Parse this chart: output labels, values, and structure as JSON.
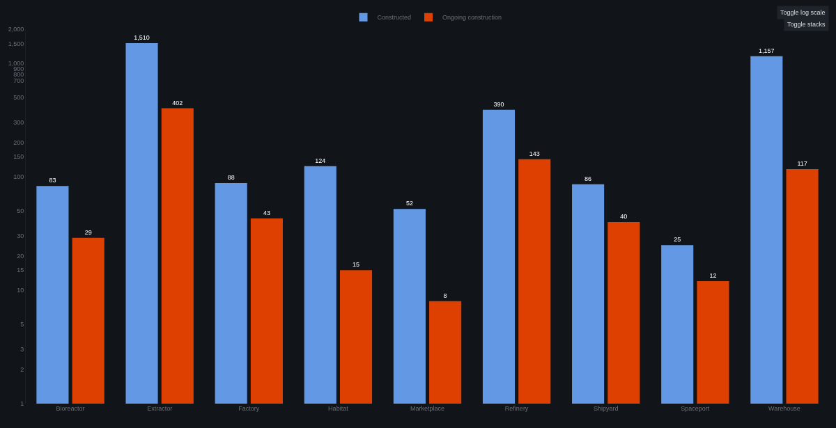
{
  "chart_data": {
    "type": "bar",
    "log": "y",
    "grid": false,
    "legend": "top",
    "categories": [
      "Bioreactor",
      "Extractor",
      "Factory",
      "Habitat",
      "Marketplace",
      "Refinery",
      "Shipyard",
      "Spaceport",
      "Warehouse"
    ],
    "series": [
      {
        "name": "Constructed",
        "color": "#6399e4",
        "values": [
          83,
          1510,
          88,
          124,
          52,
          390,
          86,
          25,
          1157
        ],
        "value_labels": [
          "83",
          "1,510",
          "88",
          "124",
          "52",
          "390",
          "86",
          "25",
          "1,157"
        ]
      },
      {
        "name": "Ongoing construction",
        "color": "#dd4000",
        "values": [
          29,
          402,
          43,
          15,
          8,
          143,
          40,
          12,
          117
        ],
        "value_labels": [
          "29",
          "402",
          "43",
          "15",
          "8",
          "143",
          "40",
          "12",
          "117"
        ]
      }
    ],
    "ylim": [
      1,
      2000
    ],
    "yticks": [
      1,
      2,
      3,
      5,
      10,
      15,
      20,
      30,
      50,
      100,
      150,
      200,
      300,
      500,
      700,
      800,
      900,
      {
        "value": 1000,
        "label": "1,000"
      },
      {
        "value": 1500,
        "label": "1,500"
      },
      {
        "value": 2000,
        "label": "2,000"
      }
    ],
    "annotations": [
      "Toggle log scale",
      "Toggle stacks"
    ]
  }
}
